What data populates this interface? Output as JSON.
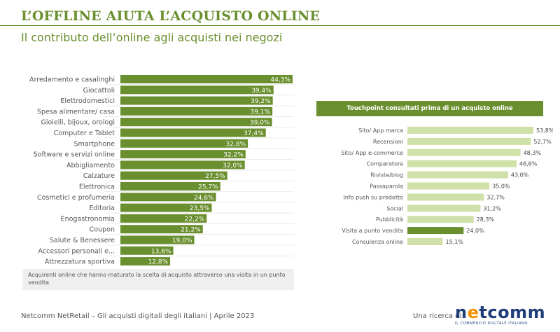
{
  "header": {
    "title": "L’OFFLINE AIUTA L’ACQUISTO ONLINE",
    "subtitle": "Il contributo dell’online agli acquisti nei negozi"
  },
  "note": "Acquirenti online che hanno maturato la scelta di acquisto attraverso una visita in un punto vendita",
  "footer": {
    "source": "Netcomm NetRetail – Gli acquisti digitali degli italiani | Aprile 2023",
    "ricerca": "Una ricerca di:",
    "logo_text": "netcomm",
    "logo_tagline": "IL COMMERCIO DIGITALE ITALIANO"
  },
  "colors": {
    "dark_green": "#6a8f2e",
    "light_green": "#cfe0a8",
    "title_green": "#6a8f2e"
  },
  "chart_data": [
    {
      "type": "bar",
      "orientation": "horizontal",
      "categories": [
        "Arredamento e casalinghi",
        "Giocattoli",
        "Elettrodomestici",
        "Spesa alimentare/ casa",
        "Gioielli, bijoux, orologi",
        "Computer e Tablet",
        "Smartphone",
        "Software e servizi online",
        "Abbigliamento",
        "Calzature",
        "Elettronica",
        "Cosmetici e profumeria",
        "Editoria",
        "Enogastronomia",
        "Coupon",
        "Salute & Benessere",
        "Accessori personali e...",
        "Attrezzatura sportiva"
      ],
      "values": [
        44.3,
        39.4,
        39.2,
        39.1,
        39.0,
        37.4,
        32.8,
        32.2,
        32.0,
        27.5,
        25.7,
        24.6,
        23.5,
        22.2,
        21.2,
        19.0,
        13.6,
        12.8
      ],
      "value_labels": [
        "44,3%",
        "39,4%",
        "39,2%",
        "39,1%",
        "39,0%",
        "37,4%",
        "32,8%",
        "32,2%",
        "32,0%",
        "27,5%",
        "25,7%",
        "24,6%",
        "23,5%",
        "22,2%",
        "21,2%",
        "19,0%",
        "13,6%",
        "12,8%"
      ],
      "xlim": [
        0,
        44.3
      ],
      "color": "#6a8f2e"
    },
    {
      "type": "bar",
      "orientation": "horizontal",
      "title": "Touchpoint consultati prima di un acquisto online",
      "categories": [
        "Sito/ App marca",
        "Recensioni",
        "Sito/ App e-commerce",
        "Comparatore",
        "Riviste/blog",
        "Passaparola",
        "Info push su prodotto",
        "Social",
        "Pubblicità",
        "Visita a punto vendita",
        "Consulenza online"
      ],
      "values": [
        53.8,
        52.7,
        48.3,
        46.6,
        43.0,
        35.0,
        32.7,
        31.2,
        28.3,
        24.0,
        15.1
      ],
      "value_labels": [
        "53,8%",
        "52,7%",
        "48,3%",
        "46,6%",
        "43,0%",
        "35,0%",
        "32,7%",
        "31,2%",
        "28,3%",
        "24,0%",
        "15,1%"
      ],
      "highlight": "Visita a punto vendita",
      "xlim": [
        0,
        53.8
      ],
      "color": "#cfe0a8",
      "highlight_color": "#6a8f2e"
    }
  ]
}
